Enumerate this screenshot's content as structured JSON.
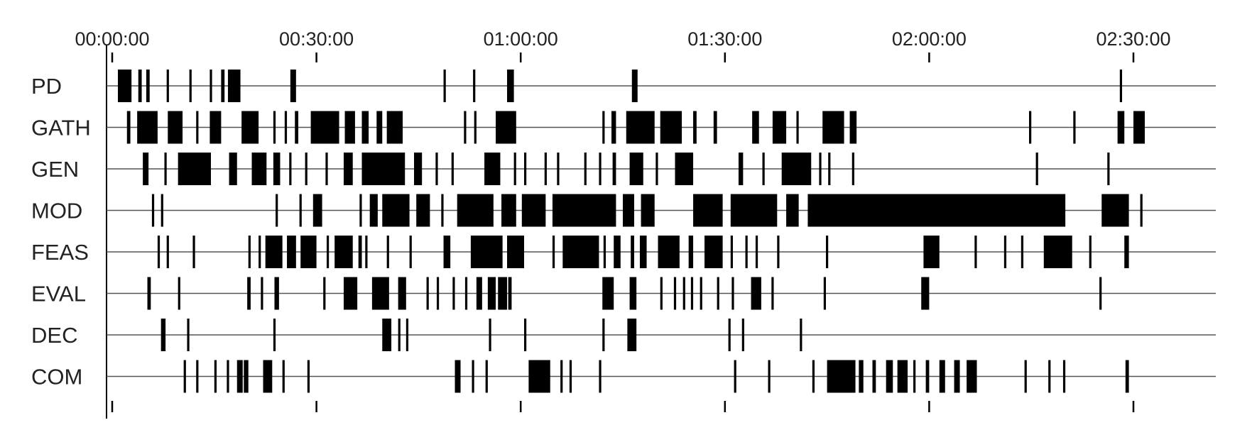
{
  "chart_data": {
    "type": "event-timeline",
    "x_unit": "elapsed time (hh:mm:ss)",
    "xlim_seconds": [
      0,
      9000
    ],
    "tick_labels": [
      "00:00:00",
      "00:30:00",
      "01:00:00",
      "01:30:00",
      "02:00:00",
      "02:30:00"
    ],
    "tick_values_seconds": [
      0,
      1800,
      3600,
      5400,
      7200,
      9000
    ],
    "categories": [
      "PD",
      "GATH",
      "GEN",
      "MOD",
      "FEAS",
      "EVAL",
      "DEC",
      "COM"
    ],
    "series": [
      {
        "name": "PD",
        "events": [
          [
            50,
            170
          ],
          [
            230,
            260
          ],
          [
            300,
            330
          ],
          [
            480,
            500
          ],
          [
            680,
            700
          ],
          [
            860,
            880
          ],
          [
            960,
            990
          ],
          [
            1020,
            1130
          ],
          [
            1570,
            1620
          ],
          [
            2920,
            2940
          ],
          [
            3180,
            3200
          ],
          [
            3480,
            3540
          ],
          [
            4580,
            4630
          ],
          [
            8880,
            8900
          ]
        ]
      },
      {
        "name": "GATH",
        "events": [
          [
            130,
            160
          ],
          [
            220,
            400
          ],
          [
            490,
            620
          ],
          [
            740,
            760
          ],
          [
            860,
            960
          ],
          [
            1140,
            1290
          ],
          [
            1420,
            1440
          ],
          [
            1520,
            1540
          ],
          [
            1610,
            1640
          ],
          [
            1750,
            2000
          ],
          [
            2050,
            2140
          ],
          [
            2200,
            2260
          ],
          [
            2330,
            2380
          ],
          [
            2420,
            2560
          ],
          [
            3100,
            3120
          ],
          [
            3190,
            3210
          ],
          [
            3380,
            3560
          ],
          [
            4320,
            4340
          ],
          [
            4400,
            4440
          ],
          [
            4530,
            4780
          ],
          [
            4830,
            5020
          ],
          [
            5120,
            5150
          ],
          [
            5300,
            5330
          ],
          [
            5640,
            5700
          ],
          [
            5820,
            5940
          ],
          [
            6030,
            6050
          ],
          [
            6260,
            6450
          ],
          [
            6500,
            6560
          ],
          [
            8080,
            8100
          ],
          [
            8470,
            8490
          ],
          [
            8860,
            8920
          ],
          [
            9000,
            9100
          ]
        ]
      },
      {
        "name": "GEN",
        "events": [
          [
            270,
            320
          ],
          [
            460,
            480
          ],
          [
            580,
            870
          ],
          [
            1030,
            1100
          ],
          [
            1230,
            1360
          ],
          [
            1420,
            1480
          ],
          [
            1560,
            1580
          ],
          [
            1700,
            1720
          ],
          [
            1880,
            1900
          ],
          [
            2040,
            2120
          ],
          [
            2200,
            2580
          ],
          [
            2660,
            2730
          ],
          [
            2850,
            2870
          ],
          [
            2990,
            3010
          ],
          [
            3280,
            3420
          ],
          [
            3540,
            3560
          ],
          [
            3630,
            3650
          ],
          [
            3810,
            3830
          ],
          [
            3920,
            3940
          ],
          [
            4160,
            4180
          ],
          [
            4290,
            4310
          ],
          [
            4410,
            4440
          ],
          [
            4560,
            4680
          ],
          [
            4790,
            4810
          ],
          [
            4960,
            5120
          ],
          [
            5520,
            5560
          ],
          [
            5730,
            5750
          ],
          [
            5900,
            6160
          ],
          [
            6230,
            6250
          ],
          [
            6310,
            6330
          ],
          [
            6520,
            6540
          ],
          [
            8140,
            8160
          ],
          [
            8770,
            8790
          ]
        ]
      },
      {
        "name": "MOD",
        "events": [
          [
            350,
            370
          ],
          [
            430,
            450
          ],
          [
            1440,
            1460
          ],
          [
            1650,
            1670
          ],
          [
            1770,
            1850
          ],
          [
            2180,
            2200
          ],
          [
            2270,
            2340
          ],
          [
            2380,
            2620
          ],
          [
            2680,
            2800
          ],
          [
            2900,
            2920
          ],
          [
            3040,
            3360
          ],
          [
            3430,
            3560
          ],
          [
            3610,
            3820
          ],
          [
            3880,
            4440
          ],
          [
            4500,
            4600
          ],
          [
            4660,
            4780
          ],
          [
            5120,
            5380
          ],
          [
            5450,
            5860
          ],
          [
            5940,
            6050
          ],
          [
            6130,
            8400
          ],
          [
            8720,
            8960
          ],
          [
            9060,
            9080
          ]
        ]
      },
      {
        "name": "FEAS",
        "events": [
          [
            400,
            420
          ],
          [
            480,
            500
          ],
          [
            710,
            730
          ],
          [
            1200,
            1220
          ],
          [
            1290,
            1310
          ],
          [
            1350,
            1500
          ],
          [
            1540,
            1620
          ],
          [
            1660,
            1800
          ],
          [
            1890,
            1910
          ],
          [
            1960,
            2120
          ],
          [
            2170,
            2200
          ],
          [
            2230,
            2250
          ],
          [
            2420,
            2440
          ],
          [
            2620,
            2640
          ],
          [
            2920,
            2980
          ],
          [
            3160,
            3440
          ],
          [
            3480,
            3630
          ],
          [
            3880,
            3900
          ],
          [
            3970,
            4290
          ],
          [
            4330,
            4350
          ],
          [
            4420,
            4480
          ],
          [
            4570,
            4600
          ],
          [
            4650,
            4710
          ],
          [
            4810,
            5000
          ],
          [
            5080,
            5120
          ],
          [
            5220,
            5380
          ],
          [
            5450,
            5470
          ],
          [
            5580,
            5600
          ],
          [
            5670,
            5690
          ],
          [
            5860,
            5880
          ],
          [
            6290,
            6310
          ],
          [
            7150,
            7290
          ],
          [
            7600,
            7620
          ],
          [
            7860,
            7880
          ],
          [
            8010,
            8030
          ],
          [
            8210,
            8460
          ],
          [
            8610,
            8630
          ],
          [
            8920,
            8960
          ]
        ]
      },
      {
        "name": "EVAL",
        "events": [
          [
            310,
            340
          ],
          [
            580,
            600
          ],
          [
            1190,
            1220
          ],
          [
            1310,
            1330
          ],
          [
            1430,
            1470
          ],
          [
            1860,
            1880
          ],
          [
            2040,
            2160
          ],
          [
            2290,
            2440
          ],
          [
            2520,
            2590
          ],
          [
            2770,
            2790
          ],
          [
            2860,
            2880
          ],
          [
            3000,
            3020
          ],
          [
            3110,
            3130
          ],
          [
            3210,
            3260
          ],
          [
            3310,
            3380
          ],
          [
            3400,
            3480
          ],
          [
            3490,
            3520
          ],
          [
            4320,
            4420
          ],
          [
            4560,
            4620
          ],
          [
            4830,
            4850
          ],
          [
            4950,
            4970
          ],
          [
            5030,
            5050
          ],
          [
            5100,
            5120
          ],
          [
            5180,
            5200
          ],
          [
            5330,
            5350
          ],
          [
            5460,
            5480
          ],
          [
            5630,
            5720
          ],
          [
            5810,
            5830
          ],
          [
            6270,
            6290
          ],
          [
            7130,
            7200
          ],
          [
            8700,
            8720
          ]
        ]
      },
      {
        "name": "DEC",
        "events": [
          [
            430,
            470
          ],
          [
            660,
            680
          ],
          [
            1420,
            1440
          ],
          [
            2380,
            2460
          ],
          [
            2520,
            2540
          ],
          [
            2590,
            2610
          ],
          [
            3320,
            3340
          ],
          [
            3630,
            3650
          ],
          [
            4320,
            4340
          ],
          [
            4540,
            4620
          ],
          [
            5430,
            5450
          ],
          [
            5550,
            5570
          ],
          [
            6060,
            6080
          ]
        ]
      },
      {
        "name": "COM",
        "events": [
          [
            630,
            650
          ],
          [
            740,
            760
          ],
          [
            900,
            920
          ],
          [
            1010,
            1030
          ],
          [
            1100,
            1150
          ],
          [
            1160,
            1200
          ],
          [
            1330,
            1410
          ],
          [
            1500,
            1520
          ],
          [
            1720,
            1740
          ],
          [
            3020,
            3070
          ],
          [
            3170,
            3190
          ],
          [
            3290,
            3310
          ],
          [
            3670,
            3860
          ],
          [
            3950,
            3970
          ],
          [
            4030,
            4050
          ],
          [
            4290,
            4310
          ],
          [
            5480,
            5500
          ],
          [
            5780,
            5800
          ],
          [
            6170,
            6190
          ],
          [
            6300,
            6550
          ],
          [
            6580,
            6620
          ],
          [
            6700,
            6730
          ],
          [
            6820,
            6880
          ],
          [
            6920,
            7010
          ],
          [
            7060,
            7080
          ],
          [
            7170,
            7200
          ],
          [
            7290,
            7340
          ],
          [
            7420,
            7470
          ],
          [
            7530,
            7620
          ],
          [
            8040,
            8060
          ],
          [
            8250,
            8270
          ],
          [
            8380,
            8400
          ],
          [
            8930,
            8960
          ]
        ]
      }
    ]
  }
}
